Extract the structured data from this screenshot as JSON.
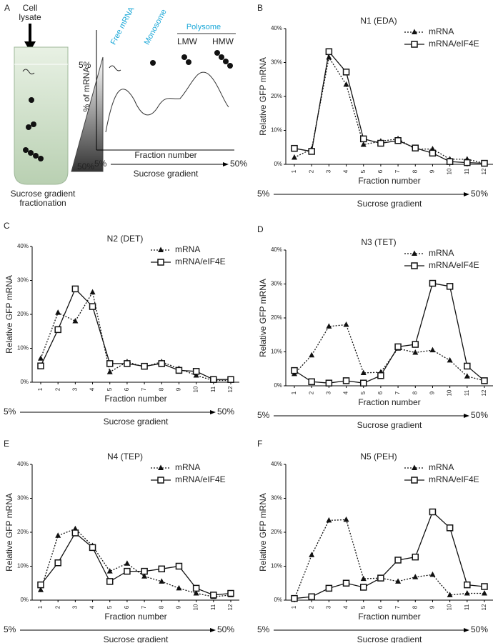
{
  "diagram": {
    "panel": "A",
    "cell_lysate": [
      "Cell",
      "lysate"
    ],
    "tube_top": "5%",
    "tube_bottom": "50%",
    "caption": [
      "Sucrose gradient",
      "fractionation"
    ],
    "free_mrna": "Free mRNA",
    "monosome": "Monosome",
    "polysome": "Polysome",
    "lmw": "LMW",
    "hmw": "HMW",
    "ylabel": "% of mRNA",
    "xlabel": "Fraction number",
    "grad_start": "5%",
    "grad_end": "50%",
    "grad_label": "Sucrose gradient"
  },
  "chart_data": [
    {
      "type": "line",
      "panel": "B",
      "title": "N1 (EDA)",
      "ylabel": "Relative GFP mRNA",
      "xlabel": "Fraction number",
      "gradient_start": "5%",
      "gradient_end": "50%",
      "gradient_label": "Sucrose gradient",
      "categories": [
        "1",
        "2",
        "3",
        "4",
        "5",
        "6",
        "7",
        "8",
        "9",
        "10",
        "11",
        "12"
      ],
      "ylim": [
        0,
        40
      ],
      "yticks": [
        {
          "value": 0,
          "label": "0%"
        },
        {
          "value": 10,
          "label": "10%"
        },
        {
          "value": 20,
          "label": "20%"
        },
        {
          "value": 30,
          "label": "30%"
        },
        {
          "value": 40,
          "label": "40%"
        }
      ],
      "series": [
        {
          "name": "mRNA",
          "color": "#111111",
          "marker": "triangle",
          "dashed": true,
          "values": [
            2,
            4.5,
            31.5,
            23.5,
            5.8,
            6.8,
            7.5,
            4.5,
            4.5,
            1.5,
            1.5,
            0.3
          ]
        },
        {
          "name": "mRNA/eIF4E",
          "color": "#111111",
          "marker": "square",
          "dashed": false,
          "values": [
            4.7,
            3.8,
            33.2,
            27.2,
            7.5,
            6.2,
            7,
            4.8,
            3.3,
            0.8,
            0.5,
            0.3
          ]
        }
      ]
    },
    {
      "type": "line",
      "panel": "C",
      "title": "N2 (DET)",
      "ylabel": "Relative GFP mRNA",
      "xlabel": "Fraction number",
      "gradient_start": "5%",
      "gradient_end": "50%",
      "gradient_label": "Sucrose gradient",
      "categories": [
        "1",
        "2",
        "3",
        "4",
        "5",
        "6",
        "7",
        "8",
        "9",
        "10",
        "11",
        "12"
      ],
      "ylim": [
        0,
        40
      ],
      "yticks": [
        {
          "value": 0,
          "label": "0%"
        },
        {
          "value": 10,
          "label": "10%"
        },
        {
          "value": 20,
          "label": "20%"
        },
        {
          "value": 30,
          "label": "30%"
        },
        {
          "value": 40,
          "label": "40%"
        }
      ],
      "series": [
        {
          "name": "mRNA",
          "color": "#111111",
          "marker": "triangle",
          "dashed": true,
          "values": [
            7,
            20.5,
            18,
            26.5,
            3,
            6,
            4.5,
            6,
            4,
            2,
            0.5,
            0.5
          ]
        },
        {
          "name": "mRNA/eIF4E",
          "color": "#111111",
          "marker": "square",
          "dashed": false,
          "values": [
            4.8,
            15.5,
            27.5,
            22.3,
            5.5,
            5.5,
            4.7,
            5.5,
            3.5,
            3.2,
            0.8,
            0.8
          ]
        }
      ]
    },
    {
      "type": "line",
      "panel": "D",
      "title": "N3 (TET)",
      "ylabel": "Relative GFP mRNA",
      "xlabel": "Fraction number",
      "gradient_start": "5%",
      "gradient_end": "50%",
      "gradient_label": "Sucrose gradient",
      "categories": [
        "1",
        "2",
        "3",
        "4",
        "5",
        "6",
        "7",
        "8",
        "9",
        "10",
        "11",
        "12"
      ],
      "ylim": [
        0,
        40
      ],
      "yticks": [
        {
          "value": 0,
          "label": "0%"
        },
        {
          "value": 10,
          "label": "10%"
        },
        {
          "value": 20,
          "label": "20%"
        },
        {
          "value": 30,
          "label": "30%"
        },
        {
          "value": 40,
          "label": "40%"
        }
      ],
      "series": [
        {
          "name": "mRNA",
          "color": "#111111",
          "marker": "triangle",
          "dashed": true,
          "values": [
            3.5,
            9,
            17.5,
            18,
            3.8,
            4,
            11,
            9.8,
            10.5,
            7.5,
            2.8,
            1.5
          ]
        },
        {
          "name": "mRNA/eIF4E",
          "color": "#111111",
          "marker": "square",
          "dashed": false,
          "values": [
            4.5,
            1.2,
            0.8,
            1.5,
            0.8,
            3,
            11.5,
            12.2,
            30.2,
            29.3,
            5.8,
            1.5
          ]
        }
      ]
    },
    {
      "type": "line",
      "panel": "E",
      "title": "N4 (TEP)",
      "ylabel": "Relative GFP mRNA",
      "xlabel": "Fraction number",
      "gradient_start": "5%",
      "gradient_end": "50%",
      "gradient_label": "Sucrose gradient",
      "categories": [
        "1",
        "2",
        "3",
        "4",
        "5",
        "6",
        "7",
        "8",
        "9",
        "10",
        "11",
        "12"
      ],
      "ylim": [
        0,
        40
      ],
      "yticks": [
        {
          "value": 0,
          "label": "0%"
        },
        {
          "value": 10,
          "label": "10%"
        },
        {
          "value": 20,
          "label": "20%"
        },
        {
          "value": 30,
          "label": "30%"
        },
        {
          "value": 40,
          "label": "40%"
        }
      ],
      "series": [
        {
          "name": "mRNA",
          "color": "#111111",
          "marker": "triangle",
          "dashed": true,
          "values": [
            3,
            19,
            21,
            16,
            8.5,
            10.8,
            7,
            5.5,
            3.5,
            2,
            1,
            1.5
          ]
        },
        {
          "name": "mRNA/eIF4E",
          "color": "#111111",
          "marker": "square",
          "dashed": false,
          "values": [
            4.5,
            11,
            19.8,
            15.5,
            5.5,
            8.5,
            8.5,
            9.2,
            10,
            3.5,
            1.5,
            2
          ]
        }
      ]
    },
    {
      "type": "line",
      "panel": "F",
      "title": "N5 (PEH)",
      "ylabel": "Relative GFP mRNA",
      "xlabel": "Fraction number",
      "gradient_start": "5%",
      "gradient_end": "50%",
      "gradient_label": "Sucrose gradient",
      "categories": [
        "1",
        "2",
        "3",
        "4",
        "5",
        "6",
        "7",
        "8",
        "9",
        "10",
        "11",
        "12"
      ],
      "ylim": [
        0,
        40
      ],
      "yticks": [
        {
          "value": 0,
          "label": "0%"
        },
        {
          "value": 10,
          "label": "10%"
        },
        {
          "value": 20,
          "label": "20%"
        },
        {
          "value": 30,
          "label": "30%"
        },
        {
          "value": 40,
          "label": "40%"
        }
      ],
      "series": [
        {
          "name": "mRNA",
          "color": "#111111",
          "marker": "triangle",
          "dashed": true,
          "values": [
            0.3,
            13.3,
            23.5,
            23.7,
            6.3,
            6.5,
            5.5,
            6.8,
            7.5,
            1.5,
            2,
            2
          ]
        },
        {
          "name": "mRNA/eIF4E",
          "color": "#111111",
          "marker": "square",
          "dashed": false,
          "values": [
            0.5,
            1,
            3.5,
            5,
            3.8,
            6.5,
            11.8,
            12.7,
            26,
            21.3,
            4.5,
            4
          ]
        }
      ]
    }
  ]
}
